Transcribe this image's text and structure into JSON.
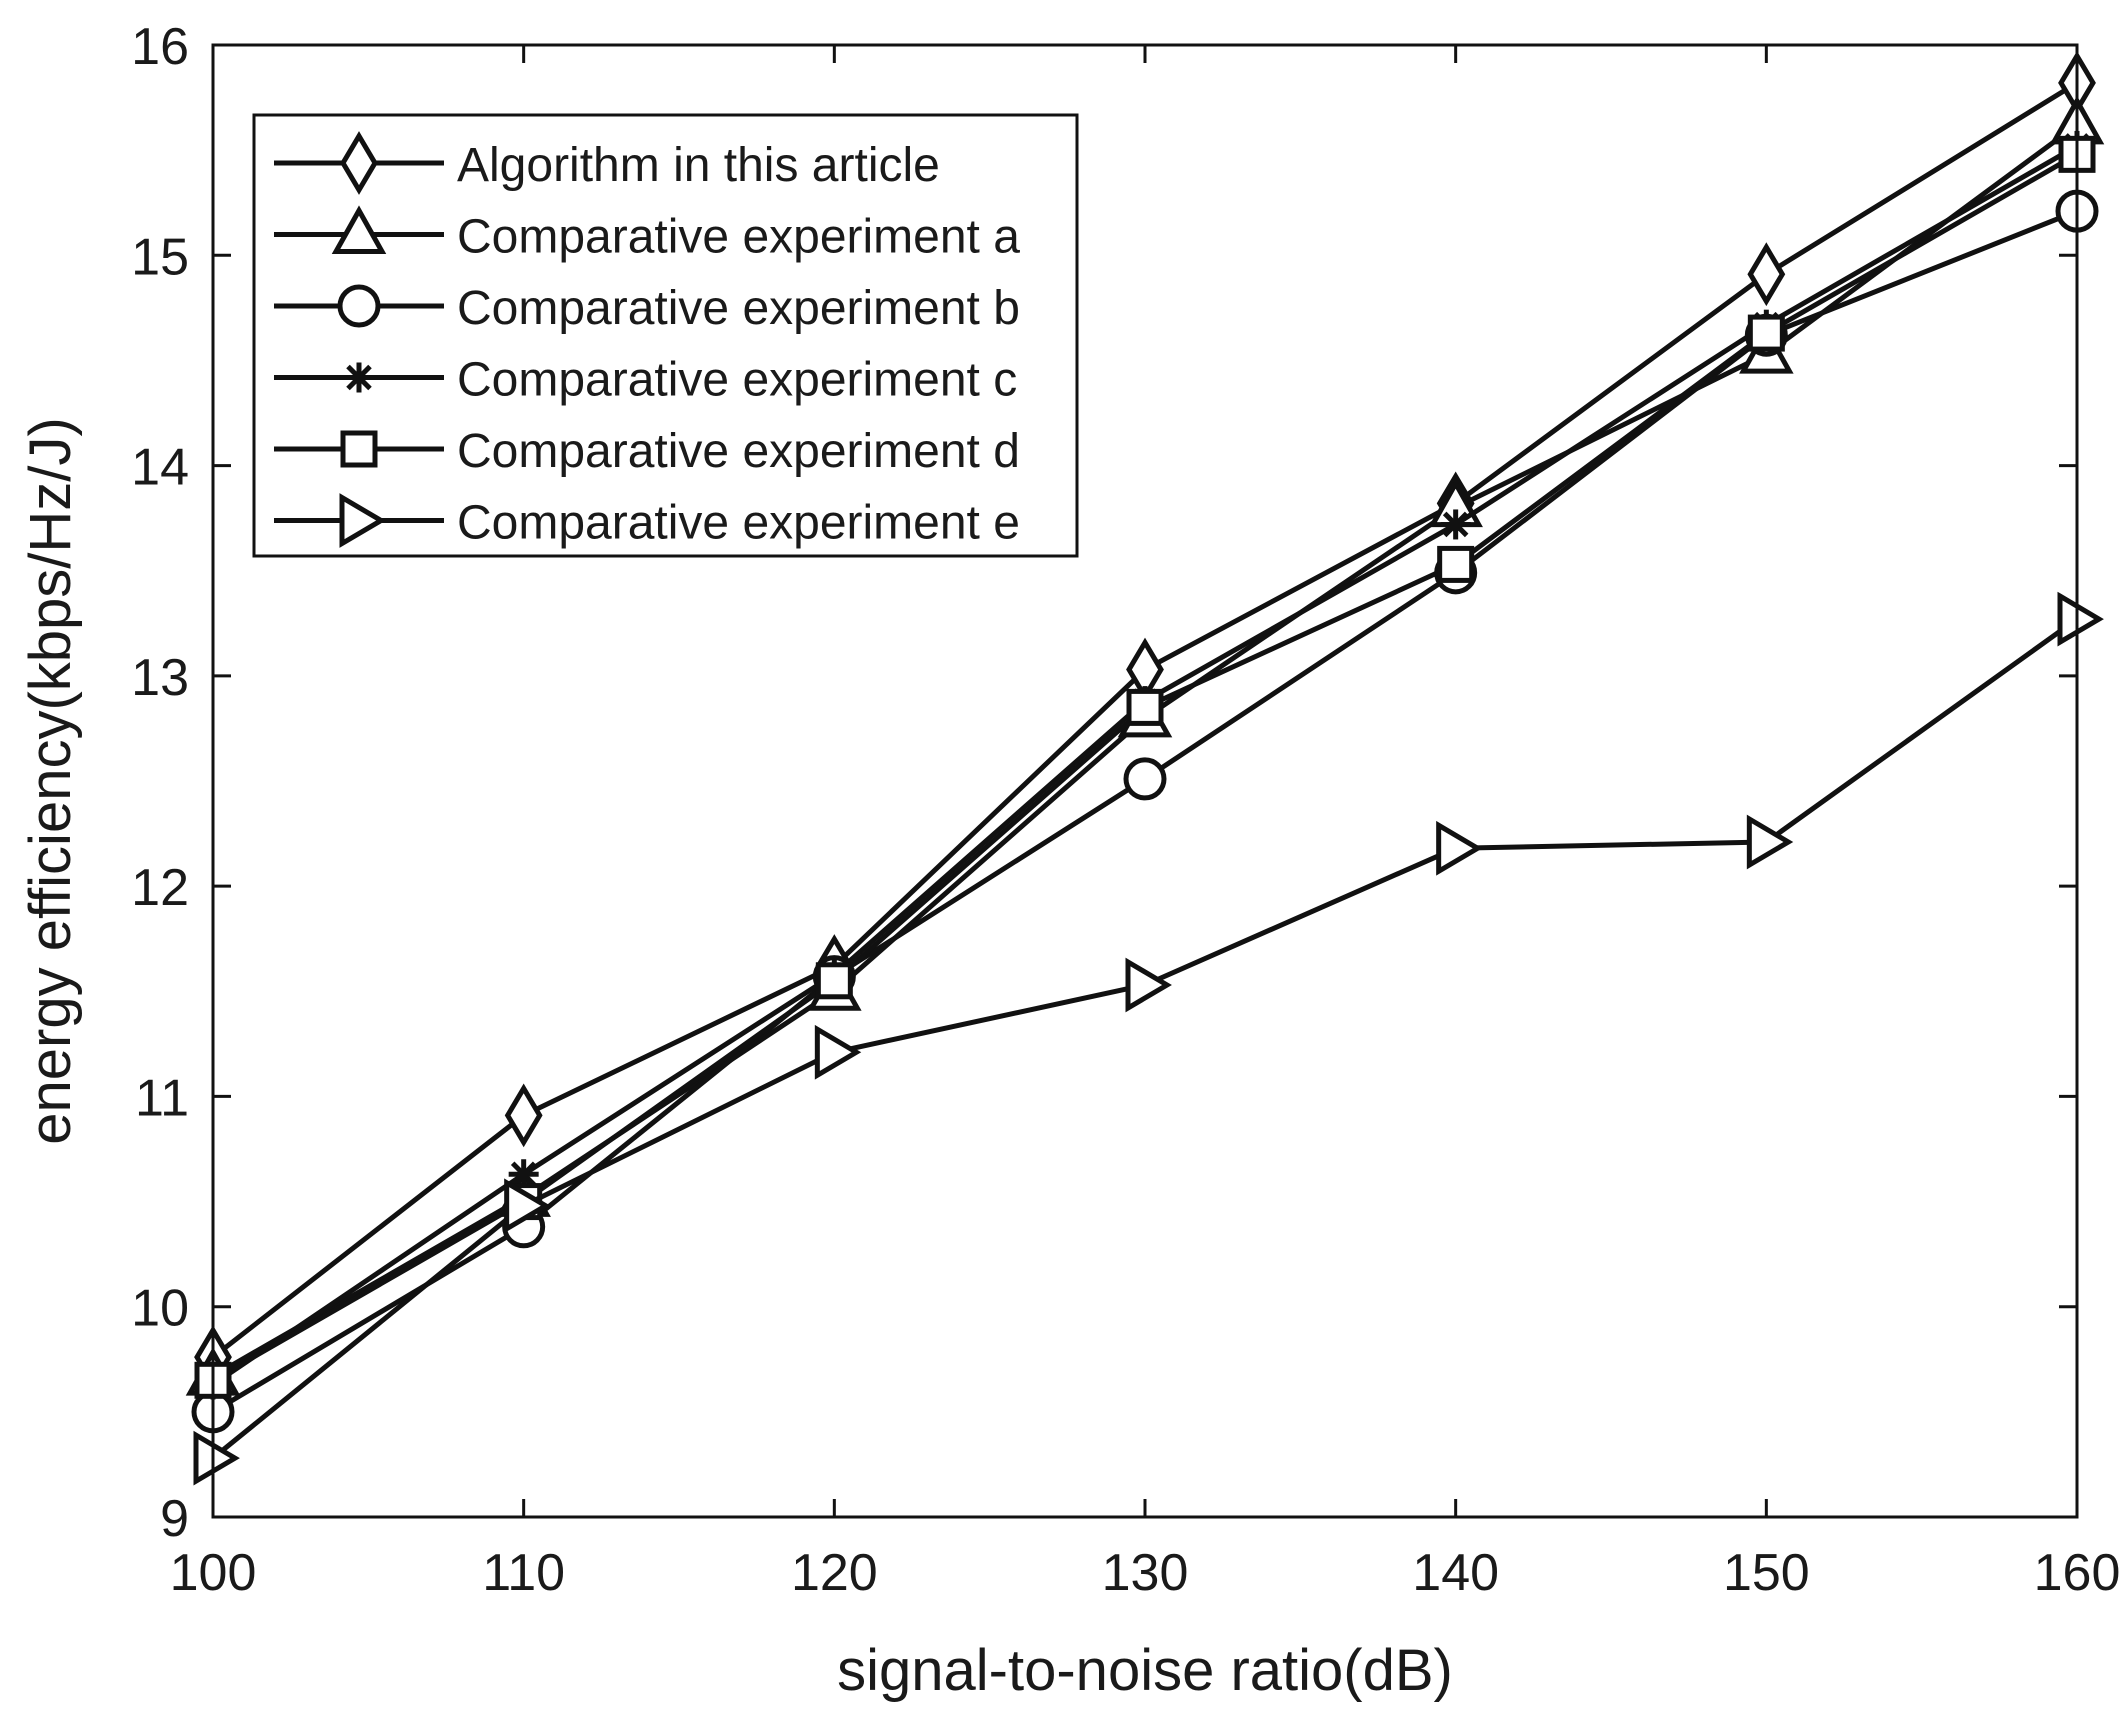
{
  "chart_data": {
    "type": "line",
    "title": "",
    "xlabel": "signal-to-noise ratio(dB)",
    "ylabel": "energy efficiency(kbps/Hz/J)",
    "x": [
      100,
      110,
      120,
      130,
      140,
      150,
      160
    ],
    "xlim": [
      100,
      160
    ],
    "ylim": [
      9,
      16
    ],
    "xticks": [
      100,
      110,
      120,
      130,
      140,
      150,
      160
    ],
    "yticks": [
      9,
      10,
      11,
      12,
      13,
      14,
      15,
      16
    ],
    "grid": false,
    "legend_position": "top-left",
    "series": [
      {
        "name": "Algorithm in this article",
        "marker": "diamond",
        "values": [
          9.76,
          10.91,
          11.62,
          13.03,
          13.82,
          14.91,
          15.82
        ]
      },
      {
        "name": "Comparative experiment a",
        "marker": "triangle-up",
        "values": [
          9.67,
          10.52,
          11.5,
          12.8,
          13.8,
          14.53,
          15.62
        ]
      },
      {
        "name": "Comparative experiment b",
        "marker": "circle",
        "values": [
          9.5,
          10.38,
          11.57,
          12.51,
          13.49,
          14.62,
          15.21
        ]
      },
      {
        "name": "Comparative experiment c",
        "marker": "asterisk",
        "values": [
          9.63,
          10.63,
          11.58,
          12.88,
          13.72,
          14.67,
          15.52
        ]
      },
      {
        "name": "Comparative experiment d",
        "marker": "square",
        "values": [
          9.65,
          10.5,
          11.55,
          12.85,
          13.53,
          14.63,
          15.48
        ]
      },
      {
        "name": "Comparative experiment e",
        "marker": "triangle-right",
        "values": [
          9.28,
          10.48,
          11.21,
          11.53,
          12.18,
          12.21,
          13.27
        ]
      }
    ]
  }
}
